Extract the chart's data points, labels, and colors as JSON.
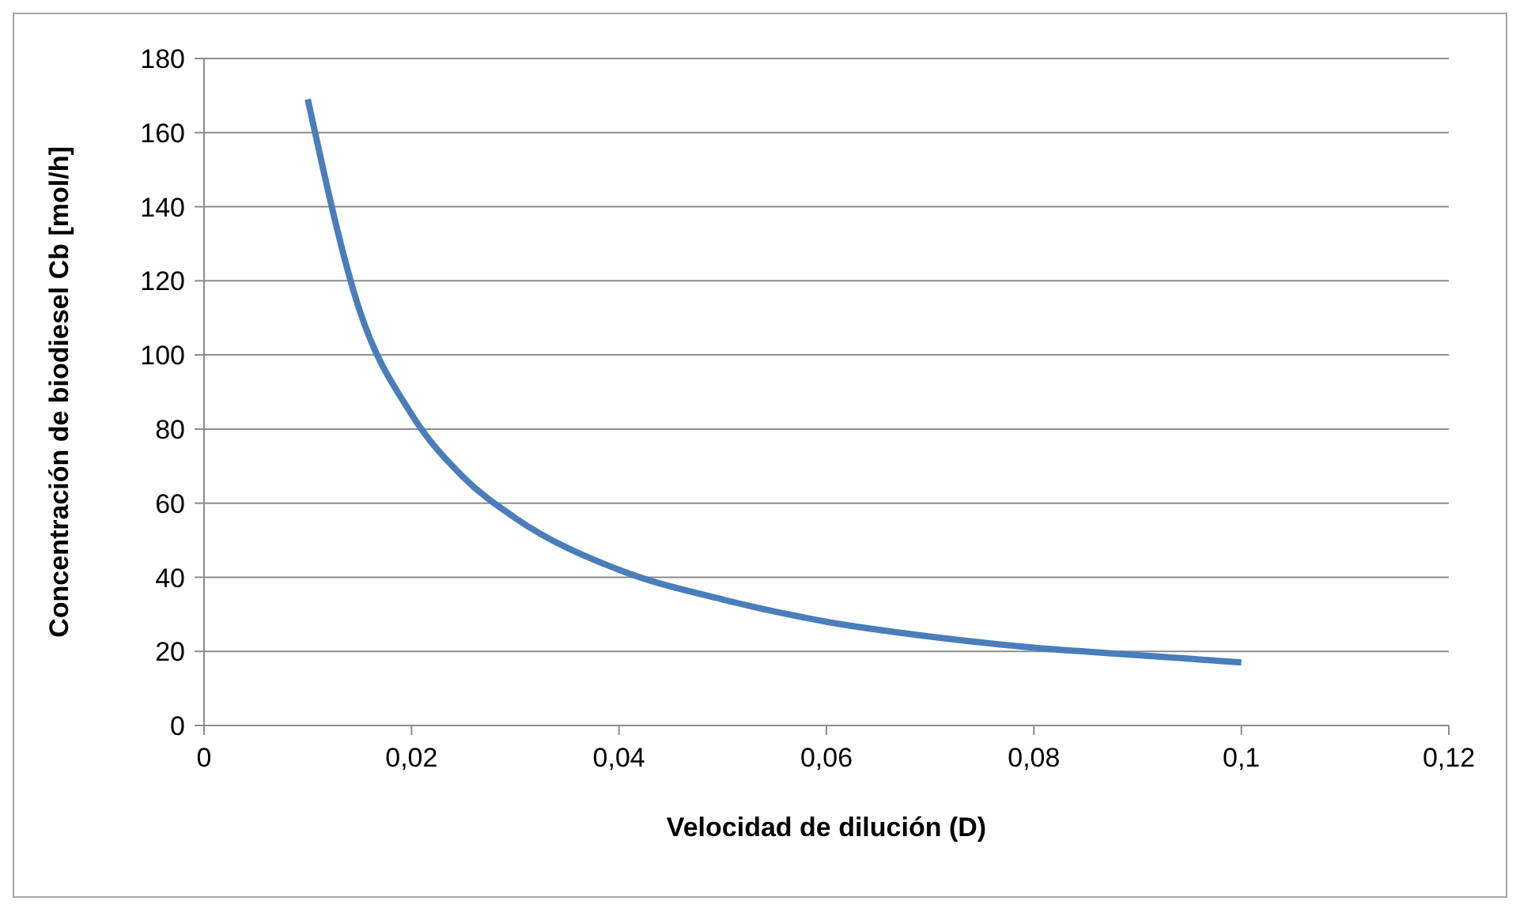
{
  "chart_data": {
    "type": "line",
    "xlabel": "Velocidad de dilución (D)",
    "ylabel": "Concentración de biodiesel Cb [mol/h]",
    "x": [
      0.01,
      0.015,
      0.02,
      0.025,
      0.03,
      0.04,
      0.05,
      0.06,
      0.07,
      0.08,
      0.09,
      0.1
    ],
    "series": [
      {
        "color": "#4a7ebb",
        "values": [
          169,
          112,
          84,
          67,
          56,
          42,
          34,
          28,
          24,
          21,
          19,
          17
        ]
      }
    ],
    "xlim": [
      0,
      0.12
    ],
    "xticks": [
      {
        "value": 0,
        "label": "0"
      },
      {
        "value": 0.02,
        "label": "0,02"
      },
      {
        "value": 0.04,
        "label": "0,04"
      },
      {
        "value": 0.06,
        "label": "0,06"
      },
      {
        "value": 0.08,
        "label": "0,08"
      },
      {
        "value": 0.1,
        "label": "0,1"
      },
      {
        "value": 0.12,
        "label": "0,12"
      }
    ],
    "ylim": [
      0,
      180
    ],
    "yticks": [
      0,
      20,
      40,
      60,
      80,
      100,
      120,
      140,
      160,
      180
    ],
    "grid": "y",
    "legend": false,
    "marker": "none",
    "line_style": "solid"
  }
}
